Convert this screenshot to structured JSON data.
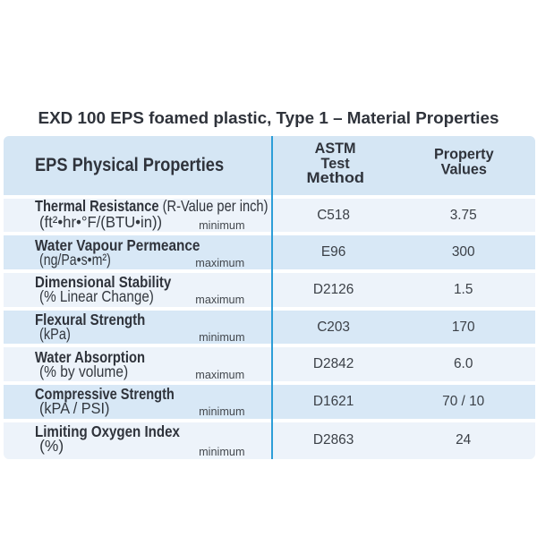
{
  "title": "EXD 100 EPS foamed plastic, Type 1 – Material Properties",
  "table": {
    "header": {
      "col1": "EPS Physical Properties",
      "col2_lines": [
        "ASTM",
        "Test",
        "Method"
      ],
      "col3_lines": [
        "Property",
        "Values"
      ]
    },
    "rows": [
      {
        "label": "Thermal Resistance",
        "label_suffix": " (R-Value per inch)",
        "unit": "(ft²•hr•°F/(BTU•in))",
        "qualifier": "minimum",
        "astm": "C518",
        "value": "3.75"
      },
      {
        "label": "Water Vapour Permeance",
        "label_suffix": "",
        "unit": "(ng/Pa•s•m²)",
        "qualifier": "maximum",
        "astm": "E96",
        "value": "300"
      },
      {
        "label": "Dimensional Stability",
        "label_suffix": "",
        "unit": "(% Linear Change)",
        "qualifier": "maximum",
        "astm": "D2126",
        "value": "1.5"
      },
      {
        "label": "Flexural Strength",
        "label_suffix": "",
        "unit": "(kPa)",
        "qualifier": "minimum",
        "astm": "C203",
        "value": "170"
      },
      {
        "label": "Water Absorption",
        "label_suffix": "",
        "unit": "(% by volume)",
        "qualifier": "maximum",
        "astm": "D2842",
        "value": "6.0"
      },
      {
        "label": "Compressive Strength",
        "label_suffix": "",
        "unit": "(kPA / PSI)",
        "qualifier": "minimum",
        "astm": "D1621",
        "value": "70 / 10"
      },
      {
        "label": "Limiting Oxygen Index",
        "label_suffix": "",
        "unit": "(%)",
        "qualifier": "minimum",
        "astm": "D2863",
        "value": "24"
      }
    ],
    "colors": {
      "header_bg": "#d5e6f4",
      "row_dark_bg": "#d8e8f6",
      "row_light_bg": "#edf3fa",
      "divider_line": "#2d9ed8",
      "text_dark": "#2f333b"
    }
  }
}
